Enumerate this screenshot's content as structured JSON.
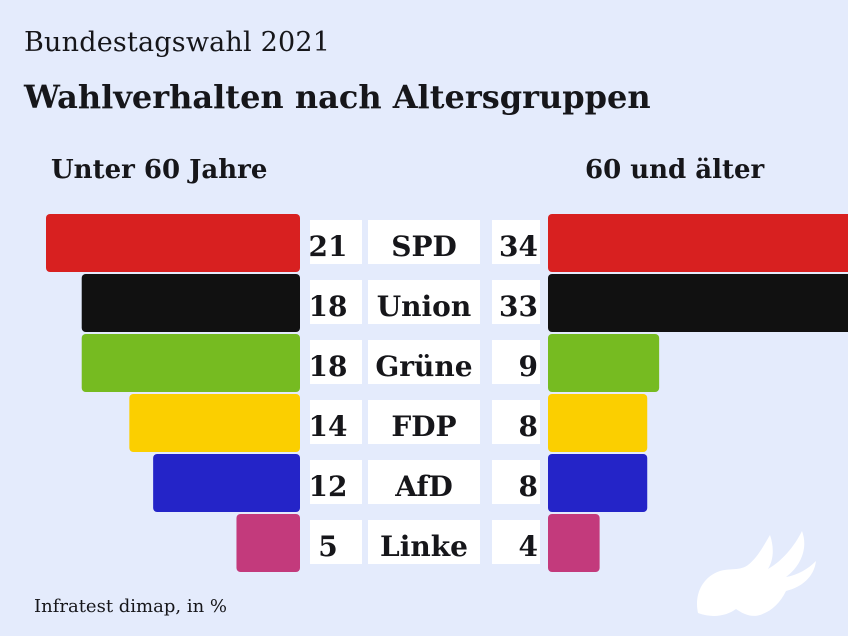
{
  "supertitle": "Bundestagswahl 2021",
  "title": "Wahlverhalten nach Altersgruppen",
  "source": "Infratest dimap, in %",
  "chart_data": {
    "type": "bar",
    "categories": [
      "SPD",
      "Union",
      "Grüne",
      "FDP",
      "AfD",
      "Linke"
    ],
    "colors": [
      "#d82020",
      "#111111",
      "#76bb21",
      "#fbcf00",
      "#2424c8",
      "#c33a7c"
    ],
    "series": [
      {
        "name": "Unter 60 Jahre",
        "values": [
          21,
          18,
          18,
          14,
          12,
          5
        ]
      },
      {
        "name": "60 und älter",
        "values": [
          34,
          33,
          9,
          8,
          8,
          4
        ]
      }
    ]
  },
  "logo_icon": "stylized-eagle-icon"
}
